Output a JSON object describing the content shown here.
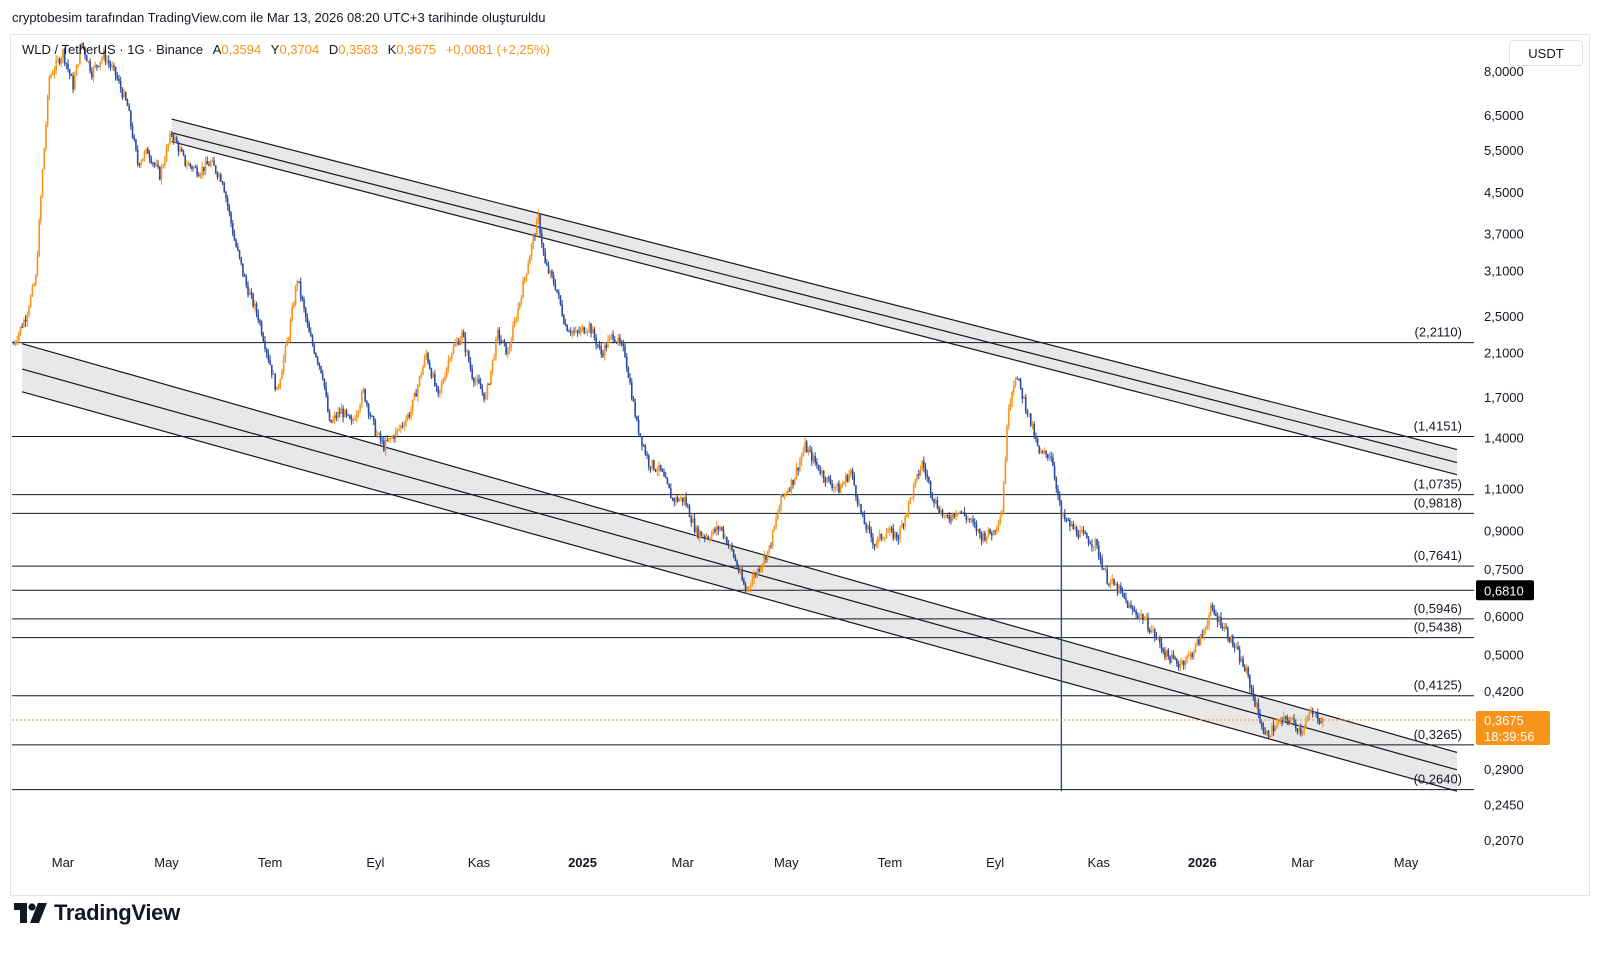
{
  "caption": "cryptobesim tarafından TradingView.com ile Mar 13, 2026 08:20 UTC+3 tarihinde oluşturuldu",
  "legend": {
    "symbol": "WLD / TetherUS · 1G · Binance",
    "open_label": "A",
    "open": "0,3594",
    "high_label": "Y",
    "high": "0,3704",
    "low_label": "D",
    "low": "0,3583",
    "close_label": "K",
    "close": "0,3675",
    "change": "+0,0081 (+2,25%)"
  },
  "currency_button": "USDT",
  "brand": "TradingView",
  "colors": {
    "up": "#f7931a",
    "down": "#2b4aa0",
    "line": "#131722",
    "channel_fill": "#e8e8e8",
    "last_price": "#f7931a",
    "marked_price_bg": "#000000"
  },
  "chart_data": {
    "type": "candlestick",
    "title": "WLD / TetherUS · 1G · Binance",
    "scale": "log",
    "y_range": [
      0.2,
      9.5
    ],
    "x_range": [
      "2024-01-31",
      "2026-06-10"
    ],
    "y_ticks": [
      "8,0000",
      "6,5000",
      "5,5000",
      "4,5000",
      "3,7000",
      "3,1000",
      "2,5000",
      "2,1000",
      "1,7000",
      "1,4000",
      "1,1000",
      "0,9000",
      "0,7500",
      "0,6000",
      "0,5000",
      "0,4200",
      "0,2900",
      "0,2450",
      "0,2070"
    ],
    "y_tick_values": [
      8.0,
      6.5,
      5.5,
      4.5,
      3.7,
      3.1,
      2.5,
      2.1,
      1.7,
      1.4,
      1.1,
      0.9,
      0.75,
      0.6,
      0.5,
      0.42,
      0.29,
      0.245,
      0.207
    ],
    "x_ticks": [
      {
        "label": "Mar",
        "date": "2024-03-01",
        "bold": false
      },
      {
        "label": "May",
        "date": "2024-05-01",
        "bold": false
      },
      {
        "label": "Tem",
        "date": "2024-07-01",
        "bold": false
      },
      {
        "label": "Eyl",
        "date": "2024-09-01",
        "bold": false
      },
      {
        "label": "Kas",
        "date": "2024-11-01",
        "bold": false
      },
      {
        "label": "2025",
        "date": "2025-01-01",
        "bold": true
      },
      {
        "label": "Mar",
        "date": "2025-03-01",
        "bold": false
      },
      {
        "label": "May",
        "date": "2025-05-01",
        "bold": false
      },
      {
        "label": "Tem",
        "date": "2025-07-01",
        "bold": false
      },
      {
        "label": "Eyl",
        "date": "2025-09-01",
        "bold": false
      },
      {
        "label": "Kas",
        "date": "2025-11-01",
        "bold": false
      },
      {
        "label": "2026",
        "date": "2026-01-01",
        "bold": true
      },
      {
        "label": "Mar",
        "date": "2026-03-01",
        "bold": false
      },
      {
        "label": "May",
        "date": "2026-05-01",
        "bold": false
      }
    ],
    "horizontal_levels": [
      {
        "value": 2.211,
        "label": "(2,2110)"
      },
      {
        "value": 1.4151,
        "label": "(1,4151)"
      },
      {
        "value": 1.0735,
        "label": "(1,0735)"
      },
      {
        "value": 0.9818,
        "label": "(0,9818)"
      },
      {
        "value": 0.7641,
        "label": "(0,7641)"
      },
      {
        "value": 0.681,
        "label": ""
      },
      {
        "value": 0.5946,
        "label": "(0,5946)"
      },
      {
        "value": 0.5438,
        "label": "(0,5438)"
      },
      {
        "value": 0.4125,
        "label": "(0,4125)"
      },
      {
        "value": 0.3265,
        "label": "(0,3265)"
      },
      {
        "value": 0.264,
        "label": "(0,2640)"
      }
    ],
    "price_markers": [
      {
        "value": 0.681,
        "label": "0,6810",
        "style": "dark"
      },
      {
        "value": 0.3675,
        "label": "0,3675",
        "sub": "18:39:56",
        "style": "last"
      }
    ],
    "trendlines": [
      {
        "name": "upper-channel-a",
        "from": {
          "date": "2024-05-04",
          "value": 6.4
        },
        "to": {
          "date": "2026-05-31",
          "value": 1.33
        }
      },
      {
        "name": "upper-channel-b",
        "from": {
          "date": "2024-05-04",
          "value": 6.0
        },
        "to": {
          "date": "2026-05-31",
          "value": 1.25
        }
      },
      {
        "name": "upper-channel-c",
        "from": {
          "date": "2024-05-04",
          "value": 5.75
        },
        "to": {
          "date": "2026-05-31",
          "value": 1.18
        }
      },
      {
        "name": "lower-channel-a",
        "from": {
          "date": "2024-02-06",
          "value": 2.2
        },
        "to": {
          "date": "2026-05-31",
          "value": 0.315
        }
      },
      {
        "name": "lower-channel-b",
        "from": {
          "date": "2024-02-06",
          "value": 1.95
        },
        "to": {
          "date": "2026-05-31",
          "value": 0.29
        }
      },
      {
        "name": "lower-channel-c",
        "from": {
          "date": "2024-02-06",
          "value": 1.75
        },
        "to": {
          "date": "2026-05-31",
          "value": 0.262
        }
      }
    ],
    "channels": [
      {
        "name": "upper-channel",
        "top": "upper-channel-a",
        "bottom": "upper-channel-c"
      },
      {
        "name": "lower-channel",
        "top": "lower-channel-a",
        "bottom": "lower-channel-c"
      }
    ],
    "series": [
      {
        "name": "WLD/USDT close (approx.)",
        "points": [
          [
            "2024-02-01",
            2.2
          ],
          [
            "2024-02-08",
            2.5
          ],
          [
            "2024-02-14",
            3.0
          ],
          [
            "2024-02-18",
            5.0
          ],
          [
            "2024-02-22",
            7.8
          ],
          [
            "2024-03-01",
            8.8
          ],
          [
            "2024-03-07",
            7.5
          ],
          [
            "2024-03-12",
            9.2
          ],
          [
            "2024-03-18",
            8.0
          ],
          [
            "2024-03-25",
            8.7
          ],
          [
            "2024-04-01",
            7.9
          ],
          [
            "2024-04-08",
            6.8
          ],
          [
            "2024-04-14",
            5.2
          ],
          [
            "2024-04-20",
            5.5
          ],
          [
            "2024-04-27",
            4.9
          ],
          [
            "2024-05-04",
            6.0
          ],
          [
            "2024-05-12",
            5.2
          ],
          [
            "2024-05-20",
            5.0
          ],
          [
            "2024-05-27",
            5.2
          ],
          [
            "2024-06-03",
            4.8
          ],
          [
            "2024-06-10",
            3.6
          ],
          [
            "2024-06-17",
            2.9
          ],
          [
            "2024-06-24",
            2.5
          ],
          [
            "2024-07-01",
            2.0
          ],
          [
            "2024-07-05",
            1.75
          ],
          [
            "2024-07-12",
            2.3
          ],
          [
            "2024-07-17",
            3.0
          ],
          [
            "2024-07-24",
            2.3
          ],
          [
            "2024-08-01",
            1.9
          ],
          [
            "2024-08-05",
            1.5
          ],
          [
            "2024-08-12",
            1.6
          ],
          [
            "2024-08-18",
            1.5
          ],
          [
            "2024-08-25",
            1.75
          ],
          [
            "2024-09-01",
            1.45
          ],
          [
            "2024-09-06",
            1.35
          ],
          [
            "2024-09-14",
            1.45
          ],
          [
            "2024-09-22",
            1.6
          ],
          [
            "2024-10-01",
            2.1
          ],
          [
            "2024-10-08",
            1.7
          ],
          [
            "2024-10-15",
            2.1
          ],
          [
            "2024-10-22",
            2.3
          ],
          [
            "2024-10-28",
            1.9
          ],
          [
            "2024-11-05",
            1.7
          ],
          [
            "2024-11-12",
            2.3
          ],
          [
            "2024-11-18",
            2.1
          ],
          [
            "2024-11-25",
            2.7
          ],
          [
            "2024-12-02",
            3.5
          ],
          [
            "2024-12-06",
            4.0
          ],
          [
            "2024-12-10",
            3.2
          ],
          [
            "2024-12-16",
            2.9
          ],
          [
            "2024-12-22",
            2.4
          ],
          [
            "2024-12-28",
            2.3
          ],
          [
            "2025-01-05",
            2.4
          ],
          [
            "2025-01-12",
            2.1
          ],
          [
            "2025-01-19",
            2.3
          ],
          [
            "2025-01-26",
            2.1
          ],
          [
            "2025-02-02",
            1.5
          ],
          [
            "2025-02-09",
            1.25
          ],
          [
            "2025-02-16",
            1.2
          ],
          [
            "2025-02-23",
            1.05
          ],
          [
            "2025-03-02",
            1.05
          ],
          [
            "2025-03-09",
            0.9
          ],
          [
            "2025-03-16",
            0.88
          ],
          [
            "2025-03-23",
            0.92
          ],
          [
            "2025-03-30",
            0.82
          ],
          [
            "2025-04-07",
            0.68
          ],
          [
            "2025-04-14",
            0.75
          ],
          [
            "2025-04-21",
            0.83
          ],
          [
            "2025-04-28",
            1.05
          ],
          [
            "2025-05-05",
            1.15
          ],
          [
            "2025-05-12",
            1.35
          ],
          [
            "2025-05-18",
            1.25
          ],
          [
            "2025-05-25",
            1.15
          ],
          [
            "2025-06-01",
            1.1
          ],
          [
            "2025-06-08",
            1.2
          ],
          [
            "2025-06-15",
            0.95
          ],
          [
            "2025-06-22",
            0.85
          ],
          [
            "2025-06-29",
            0.9
          ],
          [
            "2025-07-06",
            0.88
          ],
          [
            "2025-07-13",
            1.05
          ],
          [
            "2025-07-20",
            1.25
          ],
          [
            "2025-07-27",
            1.05
          ],
          [
            "2025-08-03",
            0.95
          ],
          [
            "2025-08-10",
            1.0
          ],
          [
            "2025-08-17",
            0.95
          ],
          [
            "2025-08-24",
            0.88
          ],
          [
            "2025-08-31",
            0.9
          ],
          [
            "2025-09-05",
            1.0
          ],
          [
            "2025-09-09",
            1.65
          ],
          [
            "2025-09-13",
            1.9
          ],
          [
            "2025-09-20",
            1.6
          ],
          [
            "2025-09-27",
            1.3
          ],
          [
            "2025-10-04",
            1.3
          ],
          [
            "2025-10-10",
            0.97
          ],
          [
            "2025-10-16",
            0.92
          ],
          [
            "2025-10-23",
            0.88
          ],
          [
            "2025-10-30",
            0.85
          ],
          [
            "2025-11-06",
            0.72
          ],
          [
            "2025-11-13",
            0.68
          ],
          [
            "2025-11-20",
            0.62
          ],
          [
            "2025-11-27",
            0.6
          ],
          [
            "2025-12-04",
            0.55
          ],
          [
            "2025-12-11",
            0.5
          ],
          [
            "2025-12-18",
            0.48
          ],
          [
            "2025-12-25",
            0.5
          ],
          [
            "2026-01-01",
            0.55
          ],
          [
            "2026-01-06",
            0.62
          ],
          [
            "2026-01-13",
            0.58
          ],
          [
            "2026-01-20",
            0.52
          ],
          [
            "2026-01-27",
            0.46
          ],
          [
            "2026-02-03",
            0.38
          ],
          [
            "2026-02-07",
            0.34
          ],
          [
            "2026-02-14",
            0.36
          ],
          [
            "2026-02-21",
            0.37
          ],
          [
            "2026-02-28",
            0.35
          ],
          [
            "2026-03-06",
            0.38
          ],
          [
            "2026-03-13",
            0.3675
          ]
        ]
      }
    ],
    "spikes": [
      {
        "date": "2025-10-10",
        "high": 0.97,
        "low": 0.262
      }
    ]
  }
}
